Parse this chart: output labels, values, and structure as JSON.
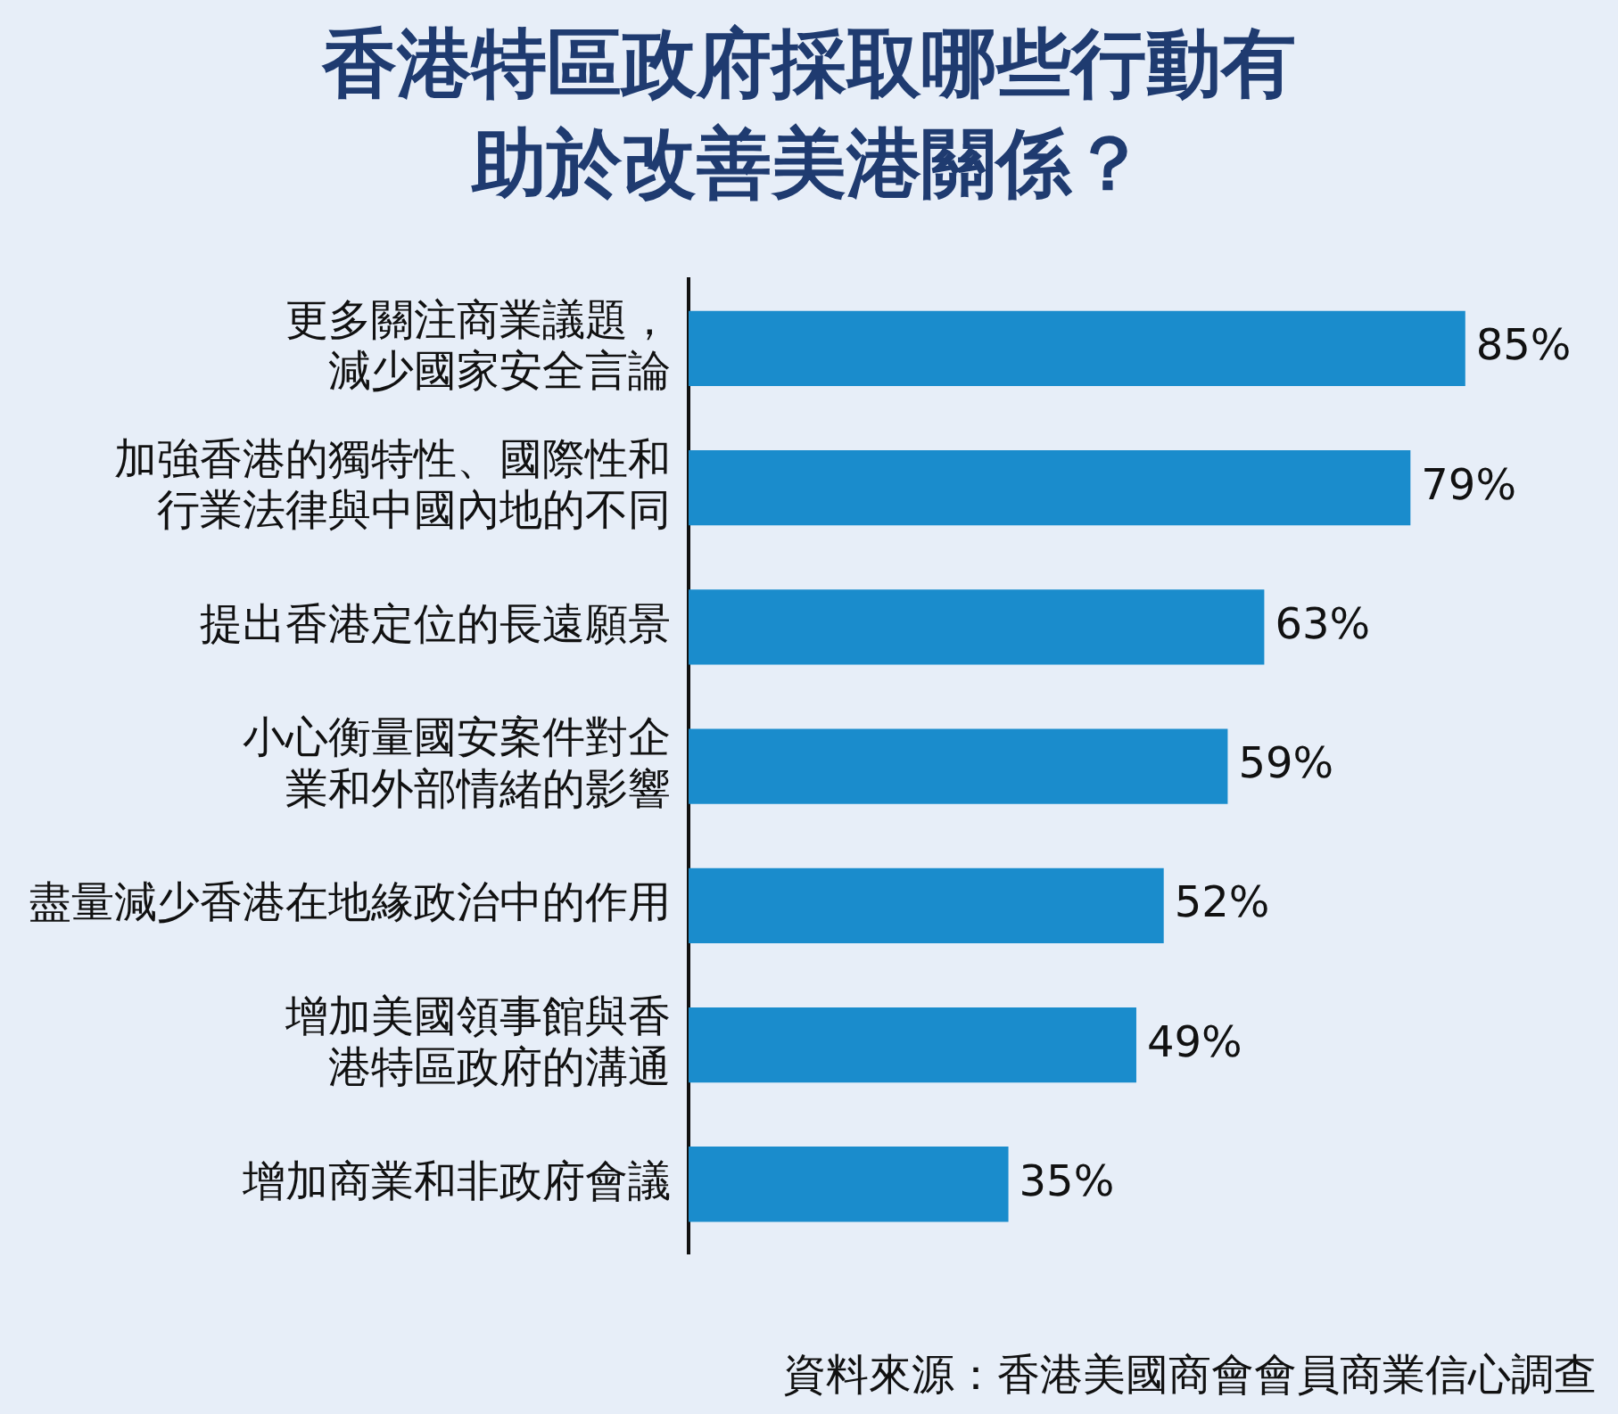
{
  "chart_data": {
    "type": "bar",
    "orientation": "horizontal",
    "title": "香港特區政府採取哪些行動有助於改善美港關係？",
    "categories": [
      "更多關注商業議題，減少國家安全言論",
      "加強香港的獨特性、國際性和行業法律與中國內地的不同",
      "提出香港定位的長遠願景",
      "小心衡量國安案件對企業和外部情緒的影響",
      "盡量減少香港在地緣政治中的作用",
      "增加美國領事館與香港特區政府的溝通",
      "增加商業和非政府會議"
    ],
    "values": [
      85,
      79,
      63,
      59,
      52,
      49,
      35
    ],
    "value_labels": [
      "85%",
      "79%",
      "63%",
      "59%",
      "52%",
      "49%",
      "35%"
    ],
    "color": "#1a8ccc",
    "tick_labels": "y",
    "grid": false,
    "legend": false,
    "annotations": [
      "資料來源：香港美國商會會員商業信心調查"
    ]
  }
}
